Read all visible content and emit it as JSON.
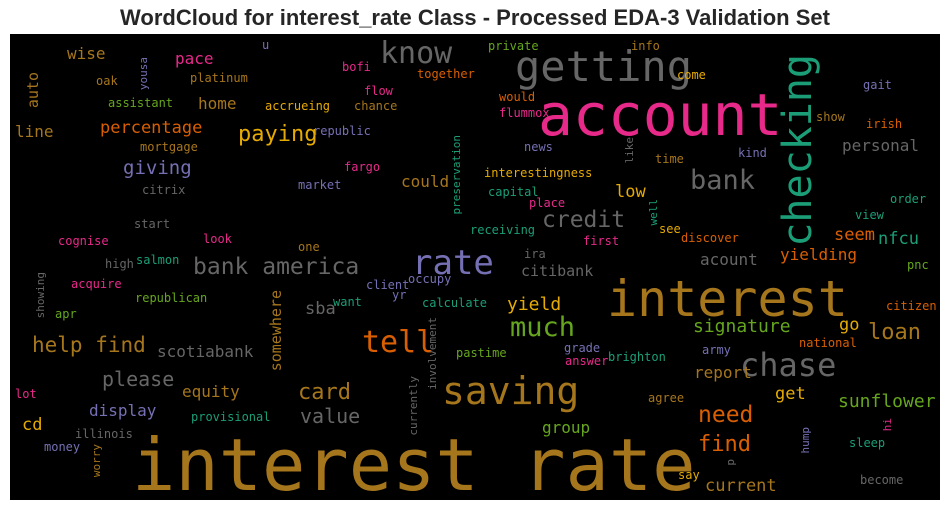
{
  "title": "WordCloud for interest_rate Class - Processed EDA-3 Validation Set",
  "chart_data": {
    "type": "wordcloud",
    "title": "WordCloud for interest_rate Class - Processed EDA-3 Validation Set",
    "background": "#000000",
    "palette": [
      "#a6761d",
      "#e7298a",
      "#1b9e77",
      "#7570b3",
      "#d95f02",
      "#66a61e",
      "#e6ab02",
      "#666666"
    ],
    "words": [
      {
        "text": "interest rate",
        "color": "#a6761d",
        "weight": 100
      },
      {
        "text": "account",
        "color": "#e7298a",
        "weight": 82
      },
      {
        "text": "interest",
        "color": "#a6761d",
        "weight": 70
      },
      {
        "text": "getting",
        "color": "#666666",
        "weight": 55
      },
      {
        "text": "checking",
        "color": "#1b9e77",
        "weight": 50
      },
      {
        "text": "saving",
        "color": "#a6761d",
        "weight": 46
      },
      {
        "text": "rate",
        "color": "#7570b3",
        "weight": 42
      },
      {
        "text": "chase",
        "color": "#666666",
        "weight": 40
      },
      {
        "text": "know",
        "color": "#666666",
        "weight": 38
      },
      {
        "text": "tell",
        "color": "#d95f02",
        "weight": 36
      },
      {
        "text": "much",
        "color": "#66a61e",
        "weight": 34
      },
      {
        "text": "bank",
        "color": "#666666",
        "weight": 33
      },
      {
        "text": "bank america",
        "color": "#666666",
        "weight": 30
      },
      {
        "text": "credit",
        "color": "#666666",
        "weight": 28
      },
      {
        "text": "help find",
        "color": "#a6761d",
        "weight": 27
      },
      {
        "text": "need",
        "color": "#d95f02",
        "weight": 26
      },
      {
        "text": "paying",
        "color": "#e6ab02",
        "weight": 26
      },
      {
        "text": "loan",
        "color": "#a6761d",
        "weight": 25
      },
      {
        "text": "find",
        "color": "#d95f02",
        "weight": 24
      },
      {
        "text": "card",
        "color": "#a6761d",
        "weight": 24
      },
      {
        "text": "please",
        "color": "#666666",
        "weight": 23
      },
      {
        "text": "value",
        "color": "#666666",
        "weight": 23
      },
      {
        "text": "signature",
        "color": "#66a61e",
        "weight": 22
      },
      {
        "text": "giving",
        "color": "#7570b3",
        "weight": 22
      },
      {
        "text": "yield",
        "color": "#e6ab02",
        "weight": 21
      },
      {
        "text": "current",
        "color": "#a6761d",
        "weight": 21
      },
      {
        "text": "sunflower",
        "color": "#66a61e",
        "weight": 20
      },
      {
        "text": "percentage",
        "color": "#d95f02",
        "weight": 20
      },
      {
        "text": "scotiabank",
        "color": "#666666",
        "weight": 19
      },
      {
        "text": "yielding",
        "color": "#d95f02",
        "weight": 19
      },
      {
        "text": "equity",
        "color": "#a6761d",
        "weight": 19
      },
      {
        "text": "display",
        "color": "#7570b3",
        "weight": 19
      },
      {
        "text": "personal",
        "color": "#666666",
        "weight": 18
      },
      {
        "text": "somewhere",
        "color": "#a6761d",
        "weight": 18
      },
      {
        "text": "report",
        "color": "#a6761d",
        "weight": 18
      },
      {
        "text": "group",
        "color": "#66a61e",
        "weight": 18
      },
      {
        "text": "nfcu",
        "color": "#1b9e77",
        "weight": 18
      },
      {
        "text": "seem",
        "color": "#d95f02",
        "weight": 18
      },
      {
        "text": "could",
        "color": "#a6761d",
        "weight": 18
      },
      {
        "text": "low",
        "color": "#e6ab02",
        "weight": 18
      },
      {
        "text": "acount",
        "color": "#666666",
        "weight": 17
      },
      {
        "text": "citibank",
        "color": "#666666",
        "weight": 17
      },
      {
        "text": "sba",
        "color": "#666666",
        "weight": 17
      },
      {
        "text": "pace",
        "color": "#e7298a",
        "weight": 17
      },
      {
        "text": "wise",
        "color": "#a6761d",
        "weight": 17
      },
      {
        "text": "home",
        "color": "#a6761d",
        "weight": 17
      },
      {
        "text": "line",
        "color": "#a6761d",
        "weight": 17
      },
      {
        "text": "auto",
        "color": "#a6761d",
        "weight": 17
      },
      {
        "text": "go",
        "color": "#e6ab02",
        "weight": 17
      },
      {
        "text": "get",
        "color": "#e6ab02",
        "weight": 17
      },
      {
        "text": "cd",
        "color": "#e6ab02",
        "weight": 17
      },
      {
        "text": "platinum",
        "color": "#a6761d",
        "weight": 13
      },
      {
        "text": "accrueing",
        "color": "#e6ab02",
        "weight": 13
      },
      {
        "text": "mortgage",
        "color": "#a6761d",
        "weight": 13
      },
      {
        "text": "republic",
        "color": "#7570b3",
        "weight": 13
      },
      {
        "text": "interestingness",
        "color": "#e6ab02",
        "weight": 13
      },
      {
        "text": "preservation",
        "color": "#1b9e77",
        "weight": 12
      },
      {
        "text": "capital",
        "color": "#1b9e77",
        "weight": 12
      },
      {
        "text": "receiving",
        "color": "#1b9e77",
        "weight": 12
      },
      {
        "text": "calculate",
        "color": "#1b9e77",
        "weight": 12
      },
      {
        "text": "pastime",
        "color": "#66a61e",
        "weight": 12
      },
      {
        "text": "brighton",
        "color": "#1b9e77",
        "weight": 12
      },
      {
        "text": "provisional",
        "color": "#1b9e77",
        "weight": 12
      },
      {
        "text": "republican",
        "color": "#66a61e",
        "weight": 12
      },
      {
        "text": "involvement",
        "color": "#666666",
        "weight": 12
      },
      {
        "text": "currently",
        "color": "#666666",
        "weight": 12
      },
      {
        "text": "illinois",
        "color": "#666666",
        "weight": 12
      },
      {
        "text": "discover",
        "color": "#d95f02",
        "weight": 12
      },
      {
        "text": "citizen",
        "color": "#d95f02",
        "weight": 12
      },
      {
        "text": "national",
        "color": "#d95f02",
        "weight": 12
      },
      {
        "text": "flummox",
        "color": "#e7298a",
        "weight": 12
      },
      {
        "text": "together",
        "color": "#d95f02",
        "weight": 12
      },
      {
        "text": "assistant",
        "color": "#66a61e",
        "weight": 12
      },
      {
        "text": "cognise",
        "color": "#e7298a",
        "weight": 12
      },
      {
        "text": "salmon",
        "color": "#1b9e77",
        "weight": 12
      },
      {
        "text": "citrix",
        "color": "#666666",
        "weight": 12
      },
      {
        "text": "market",
        "color": "#7570b3",
        "weight": 12
      },
      {
        "text": "fargo",
        "color": "#e7298a",
        "weight": 12
      },
      {
        "text": "chance",
        "color": "#a6761d",
        "weight": 12
      },
      {
        "text": "flow",
        "color": "#e7298a",
        "weight": 12
      },
      {
        "text": "bofi",
        "color": "#e7298a",
        "weight": 12
      },
      {
        "text": "private",
        "color": "#66a61e",
        "weight": 12
      },
      {
        "text": "info",
        "color": "#a6761d",
        "weight": 12
      },
      {
        "text": "come",
        "color": "#e6ab02",
        "weight": 12
      },
      {
        "text": "would",
        "color": "#d95f02",
        "weight": 12
      },
      {
        "text": "gait",
        "color": "#7570b3",
        "weight": 12
      },
      {
        "text": "show",
        "color": "#a6761d",
        "weight": 12
      },
      {
        "text": "irish",
        "color": "#d95f02",
        "weight": 12
      },
      {
        "text": "kind",
        "color": "#7570b3",
        "weight": 12
      },
      {
        "text": "time",
        "color": "#a6761d",
        "weight": 12
      },
      {
        "text": "like",
        "color": "#666666",
        "weight": 12
      },
      {
        "text": "news",
        "color": "#7570b3",
        "weight": 12
      },
      {
        "text": "order",
        "color": "#1b9e77",
        "weight": 12
      },
      {
        "text": "view",
        "color": "#1b9e77",
        "weight": 12
      },
      {
        "text": "well",
        "color": "#1b9e77",
        "weight": 12
      },
      {
        "text": "place",
        "color": "#e7298a",
        "weight": 12
      },
      {
        "text": "see",
        "color": "#e6ab02",
        "weight": 12
      },
      {
        "text": "first",
        "color": "#e7298a",
        "weight": 12
      },
      {
        "text": "pnc",
        "color": "#66a61e",
        "weight": 12
      },
      {
        "text": "ira",
        "color": "#666666",
        "weight": 12
      },
      {
        "text": "client",
        "color": "#7570b3",
        "weight": 12
      },
      {
        "text": "occupy",
        "color": "#7570b3",
        "weight": 12
      },
      {
        "text": "yr",
        "color": "#7570b3",
        "weight": 12
      },
      {
        "text": "want",
        "color": "#1b9e77",
        "weight": 12
      },
      {
        "text": "one",
        "color": "#a6761d",
        "weight": 12
      },
      {
        "text": "look",
        "color": "#e7298a",
        "weight": 12
      },
      {
        "text": "start",
        "color": "#666666",
        "weight": 12
      },
      {
        "text": "high",
        "color": "#666666",
        "weight": 12
      },
      {
        "text": "acquire",
        "color": "#e7298a",
        "weight": 12
      },
      {
        "text": "apr",
        "color": "#66a61e",
        "weight": 12
      },
      {
        "text": "showing",
        "color": "#666666",
        "weight": 12
      },
      {
        "text": "lot",
        "color": "#e7298a",
        "weight": 12
      },
      {
        "text": "money",
        "color": "#7570b3",
        "weight": 12
      },
      {
        "text": "worry",
        "color": "#a6761d",
        "weight": 12
      },
      {
        "text": "grade",
        "color": "#7570b3",
        "weight": 12
      },
      {
        "text": "answer",
        "color": "#e7298a",
        "weight": 12
      },
      {
        "text": "army",
        "color": "#7570b3",
        "weight": 12
      },
      {
        "text": "agree",
        "color": "#a6761d",
        "weight": 12
      },
      {
        "text": "hump",
        "color": "#7570b3",
        "weight": 12
      },
      {
        "text": "hi",
        "color": "#e7298a",
        "weight": 12
      },
      {
        "text": "sleep",
        "color": "#1b9e77",
        "weight": 12
      },
      {
        "text": "say",
        "color": "#e6ab02",
        "weight": 12
      },
      {
        "text": "p",
        "color": "#666666",
        "weight": 12
      },
      {
        "text": "become",
        "color": "#666666",
        "weight": 12
      },
      {
        "text": "oak",
        "color": "#a6761d",
        "weight": 12
      },
      {
        "text": "yousa",
        "color": "#7570b3",
        "weight": 12
      },
      {
        "text": "u",
        "color": "#7570b3",
        "weight": 12
      }
    ]
  }
}
